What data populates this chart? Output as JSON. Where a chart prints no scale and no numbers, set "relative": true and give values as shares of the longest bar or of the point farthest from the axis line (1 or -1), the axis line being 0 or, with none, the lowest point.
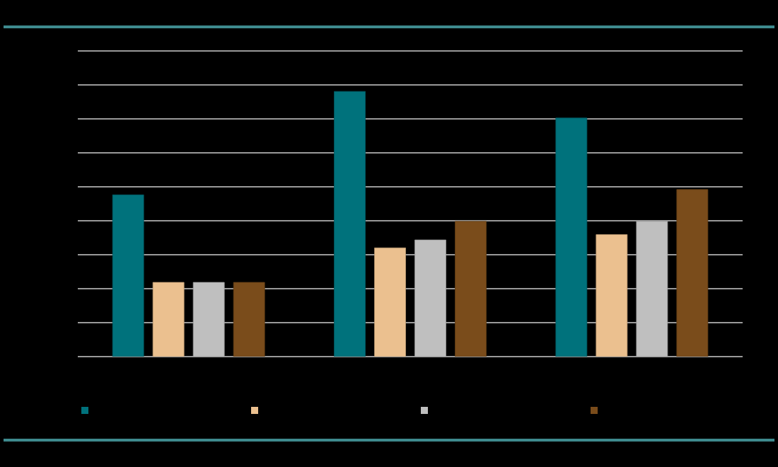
{
  "chart_data": {
    "type": "bar",
    "relative": true,
    "categories": [
      null,
      null,
      null
    ],
    "series": [
      {
        "color": "#00727c",
        "values": [
          0.61,
          1,
          0.9
        ]
      },
      {
        "color": "#ebc08f",
        "values": [
          0.28,
          0.41,
          0.46
        ]
      },
      {
        "color": "#bfbfbf",
        "values": [
          0.28,
          0.44,
          0.51
        ]
      },
      {
        "color": "#7a4c1b",
        "values": [
          0.28,
          0.51,
          0.63
        ]
      }
    ],
    "grid": "y"
  }
}
